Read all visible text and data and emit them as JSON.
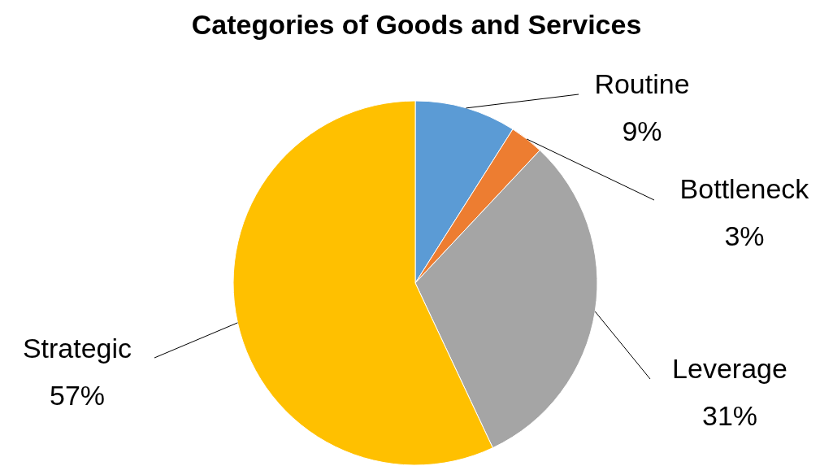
{
  "chart_data": {
    "type": "pie",
    "title": "Categories of Goods and Services",
    "categories": [
      "Routine",
      "Bottleneck",
      "Leverage",
      "Strategic"
    ],
    "values": [
      9,
      3,
      31,
      57
    ],
    "colors": [
      "#5b9bd5",
      "#ed7d31",
      "#a5a5a5",
      "#ffc000"
    ],
    "value_labels": [
      "9%",
      "3%",
      "31%",
      "57%"
    ]
  }
}
